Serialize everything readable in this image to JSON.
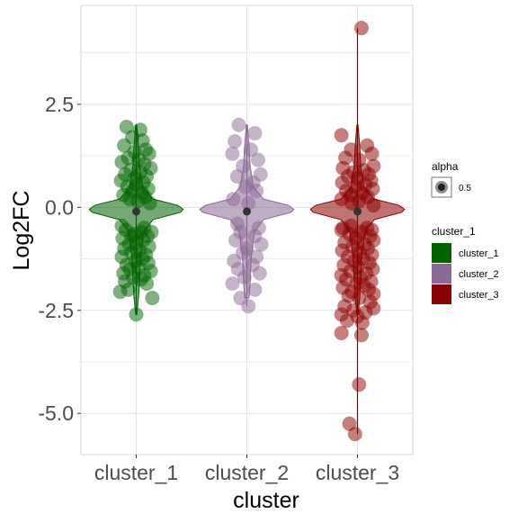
{
  "chart_data": {
    "type": "scatter",
    "subtype": "violin-jitter",
    "xlabel": "cluster",
    "ylabel": "Log2FC",
    "categories": [
      "cluster_1",
      "cluster_2",
      "cluster_3"
    ],
    "ylim": [
      -6.0,
      4.9
    ],
    "yticks": [
      -5.0,
      -2.5,
      0.0,
      2.5
    ],
    "ytick_labels": [
      "-5.0",
      "-2.5",
      "0.0",
      "2.5"
    ],
    "grid": true,
    "legend_position": "right",
    "legend_alpha": {
      "title": "alpha",
      "label": "0.5"
    },
    "legend_cluster": {
      "title": "cluster_1",
      "entries": [
        {
          "label": "cluster_1",
          "color": "#006400"
        },
        {
          "label": "cluster_2",
          "color": "#8B6A94"
        },
        {
          "label": "cluster_3",
          "color": "#8B0000"
        }
      ]
    },
    "point_alpha": 0.5,
    "series": [
      {
        "name": "cluster_1",
        "color": "#006400",
        "mean": -0.1,
        "min": -2.6,
        "max": 2.0,
        "points": [
          [
            -0.12,
            1.95
          ],
          [
            0.05,
            1.88
          ],
          [
            -0.05,
            1.7
          ],
          [
            0.08,
            1.62
          ],
          [
            -0.15,
            1.5
          ],
          [
            0.12,
            1.4
          ],
          [
            -0.02,
            1.35
          ],
          [
            0.16,
            1.3
          ],
          [
            -0.1,
            1.2
          ],
          [
            0.03,
            1.15
          ],
          [
            -0.18,
            1.1
          ],
          [
            0.1,
            1.05
          ],
          [
            0.18,
            0.95
          ],
          [
            -0.07,
            0.9
          ],
          [
            0.05,
            0.85
          ],
          [
            -0.14,
            0.8
          ],
          [
            0.13,
            0.75
          ],
          [
            -0.02,
            0.7
          ],
          [
            -0.19,
            0.65
          ],
          [
            0.09,
            0.6
          ],
          [
            0.0,
            0.55
          ],
          [
            -0.11,
            0.5
          ],
          [
            0.15,
            0.45
          ],
          [
            -0.05,
            0.4
          ],
          [
            0.07,
            0.35
          ],
          [
            -0.16,
            0.3
          ],
          [
            0.11,
            0.25
          ],
          [
            -0.08,
            0.2
          ],
          [
            0.02,
            0.15
          ],
          [
            0.17,
            0.1
          ],
          [
            -0.13,
            -0.55
          ],
          [
            0.06,
            -0.6
          ],
          [
            -0.03,
            -0.65
          ],
          [
            0.14,
            -0.7
          ],
          [
            -0.17,
            -0.75
          ],
          [
            0.09,
            -0.8
          ],
          [
            0.0,
            -0.85
          ],
          [
            -0.09,
            -0.9
          ],
          [
            0.16,
            -0.95
          ],
          [
            -0.15,
            -1.0
          ],
          [
            0.04,
            -1.05
          ],
          [
            -0.06,
            -1.1
          ],
          [
            0.12,
            -1.15
          ],
          [
            -0.18,
            -1.2
          ],
          [
            0.08,
            -1.25
          ],
          [
            -0.01,
            -1.3
          ],
          [
            0.15,
            -1.35
          ],
          [
            -0.12,
            -1.4
          ],
          [
            0.03,
            -1.45
          ],
          [
            -0.08,
            -1.5
          ],
          [
            0.18,
            -1.55
          ],
          [
            -0.16,
            -1.6
          ],
          [
            0.1,
            -1.65
          ],
          [
            -0.04,
            -1.7
          ],
          [
            0.06,
            -1.75
          ],
          [
            -0.14,
            -1.8
          ],
          [
            0.13,
            -1.85
          ],
          [
            -0.1,
            -2.0
          ],
          [
            0.2,
            -2.2
          ],
          [
            -0.2,
            -2.05
          ],
          [
            0.0,
            -2.6
          ],
          [
            -0.06,
            -0.7
          ],
          [
            0.1,
            -0.5
          ],
          [
            -0.18,
            -0.45
          ],
          [
            0.19,
            -0.6
          ]
        ]
      },
      {
        "name": "cluster_2",
        "color": "#8B6A94",
        "mean": -0.1,
        "min": -2.4,
        "max": 2.0,
        "points": [
          [
            -0.1,
            2.0
          ],
          [
            0.1,
            1.8
          ],
          [
            -0.15,
            1.6
          ],
          [
            0.05,
            1.4
          ],
          [
            -0.18,
            1.3
          ],
          [
            0.14,
            1.15
          ],
          [
            -0.05,
            1.0
          ],
          [
            0.17,
            0.8
          ],
          [
            -0.12,
            0.75
          ],
          [
            0.08,
            0.6
          ],
          [
            -0.02,
            0.5
          ],
          [
            0.12,
            0.4
          ],
          [
            -0.17,
            0.2
          ],
          [
            0.02,
            0.1
          ],
          [
            -0.08,
            -0.6
          ],
          [
            0.1,
            -0.7
          ],
          [
            -0.14,
            -0.8
          ],
          [
            0.18,
            -0.9
          ],
          [
            0.0,
            -1.0
          ],
          [
            -0.05,
            -1.1
          ],
          [
            0.12,
            -1.2
          ],
          [
            -0.16,
            -1.3
          ],
          [
            0.07,
            -1.4
          ],
          [
            -0.11,
            -1.5
          ],
          [
            0.16,
            -1.6
          ],
          [
            -0.03,
            -1.7
          ],
          [
            -0.18,
            -1.85
          ],
          [
            0.1,
            -2.0
          ],
          [
            -0.08,
            -2.2
          ],
          [
            0.02,
            -2.4
          ],
          [
            0.15,
            -0.5
          ],
          [
            -0.12,
            -0.4
          ]
        ]
      },
      {
        "name": "cluster_3",
        "color": "#8B0000",
        "mean": -0.1,
        "min": -5.5,
        "max": 4.35,
        "points": [
          [
            0.05,
            4.35
          ],
          [
            -0.2,
            1.75
          ],
          [
            0.12,
            1.5
          ],
          [
            -0.08,
            1.4
          ],
          [
            0.18,
            1.3
          ],
          [
            -0.15,
            1.2
          ],
          [
            0.02,
            1.15
          ],
          [
            0.2,
            1.0
          ],
          [
            -0.18,
            0.95
          ],
          [
            0.08,
            0.9
          ],
          [
            -0.05,
            0.85
          ],
          [
            0.14,
            0.8
          ],
          [
            -0.12,
            0.75
          ],
          [
            0.0,
            0.7
          ],
          [
            0.17,
            0.65
          ],
          [
            -0.19,
            0.6
          ],
          [
            0.1,
            0.55
          ],
          [
            -0.03,
            0.5
          ],
          [
            0.19,
            0.45
          ],
          [
            -0.14,
            0.4
          ],
          [
            0.06,
            0.35
          ],
          [
            -0.09,
            0.3
          ],
          [
            0.13,
            0.25
          ],
          [
            -0.2,
            0.2
          ],
          [
            0.02,
            0.15
          ],
          [
            -0.07,
            0.1
          ],
          [
            0.2,
            0.05
          ],
          [
            -0.2,
            -0.55
          ],
          [
            0.05,
            -0.6
          ],
          [
            -0.1,
            -0.65
          ],
          [
            0.16,
            -0.7
          ],
          [
            -0.02,
            -0.75
          ],
          [
            0.2,
            -0.8
          ],
          [
            -0.16,
            -0.85
          ],
          [
            0.09,
            -0.9
          ],
          [
            -0.06,
            -0.95
          ],
          [
            0.13,
            -1.0
          ],
          [
            -0.19,
            -1.05
          ],
          [
            0.03,
            -1.1
          ],
          [
            0.18,
            -1.15
          ],
          [
            -0.12,
            -1.2
          ],
          [
            0.07,
            -1.25
          ],
          [
            -0.04,
            -1.3
          ],
          [
            0.15,
            -1.35
          ],
          [
            -0.17,
            -1.4
          ],
          [
            0.0,
            -1.45
          ],
          [
            0.19,
            -1.5
          ],
          [
            -0.09,
            -1.55
          ],
          [
            0.11,
            -1.6
          ],
          [
            -0.2,
            -1.65
          ],
          [
            0.04,
            -1.7
          ],
          [
            -0.14,
            -1.75
          ],
          [
            0.17,
            -1.8
          ],
          [
            -0.01,
            -1.85
          ],
          [
            0.08,
            -1.9
          ],
          [
            -0.18,
            -1.95
          ],
          [
            0.14,
            -2.0
          ],
          [
            -0.07,
            -2.05
          ],
          [
            0.2,
            -2.1
          ],
          [
            -0.11,
            -2.15
          ],
          [
            0.02,
            -2.2
          ],
          [
            0.16,
            -2.3
          ],
          [
            -0.16,
            -2.4
          ],
          [
            0.2,
            -2.45
          ],
          [
            -0.05,
            -2.5
          ],
          [
            0.1,
            -2.55
          ],
          [
            -0.2,
            -2.6
          ],
          [
            0.0,
            -2.65
          ],
          [
            -0.13,
            -2.75
          ],
          [
            0.06,
            -2.8
          ],
          [
            -0.2,
            -3.05
          ],
          [
            0.05,
            -3.1
          ],
          [
            0.02,
            -4.3
          ],
          [
            -0.1,
            -5.25
          ],
          [
            -0.03,
            -5.5
          ],
          [
            0.12,
            -0.5
          ],
          [
            -0.08,
            -0.45
          ],
          [
            0.18,
            -0.55
          ],
          [
            -0.18,
            -0.5
          ]
        ]
      }
    ]
  }
}
